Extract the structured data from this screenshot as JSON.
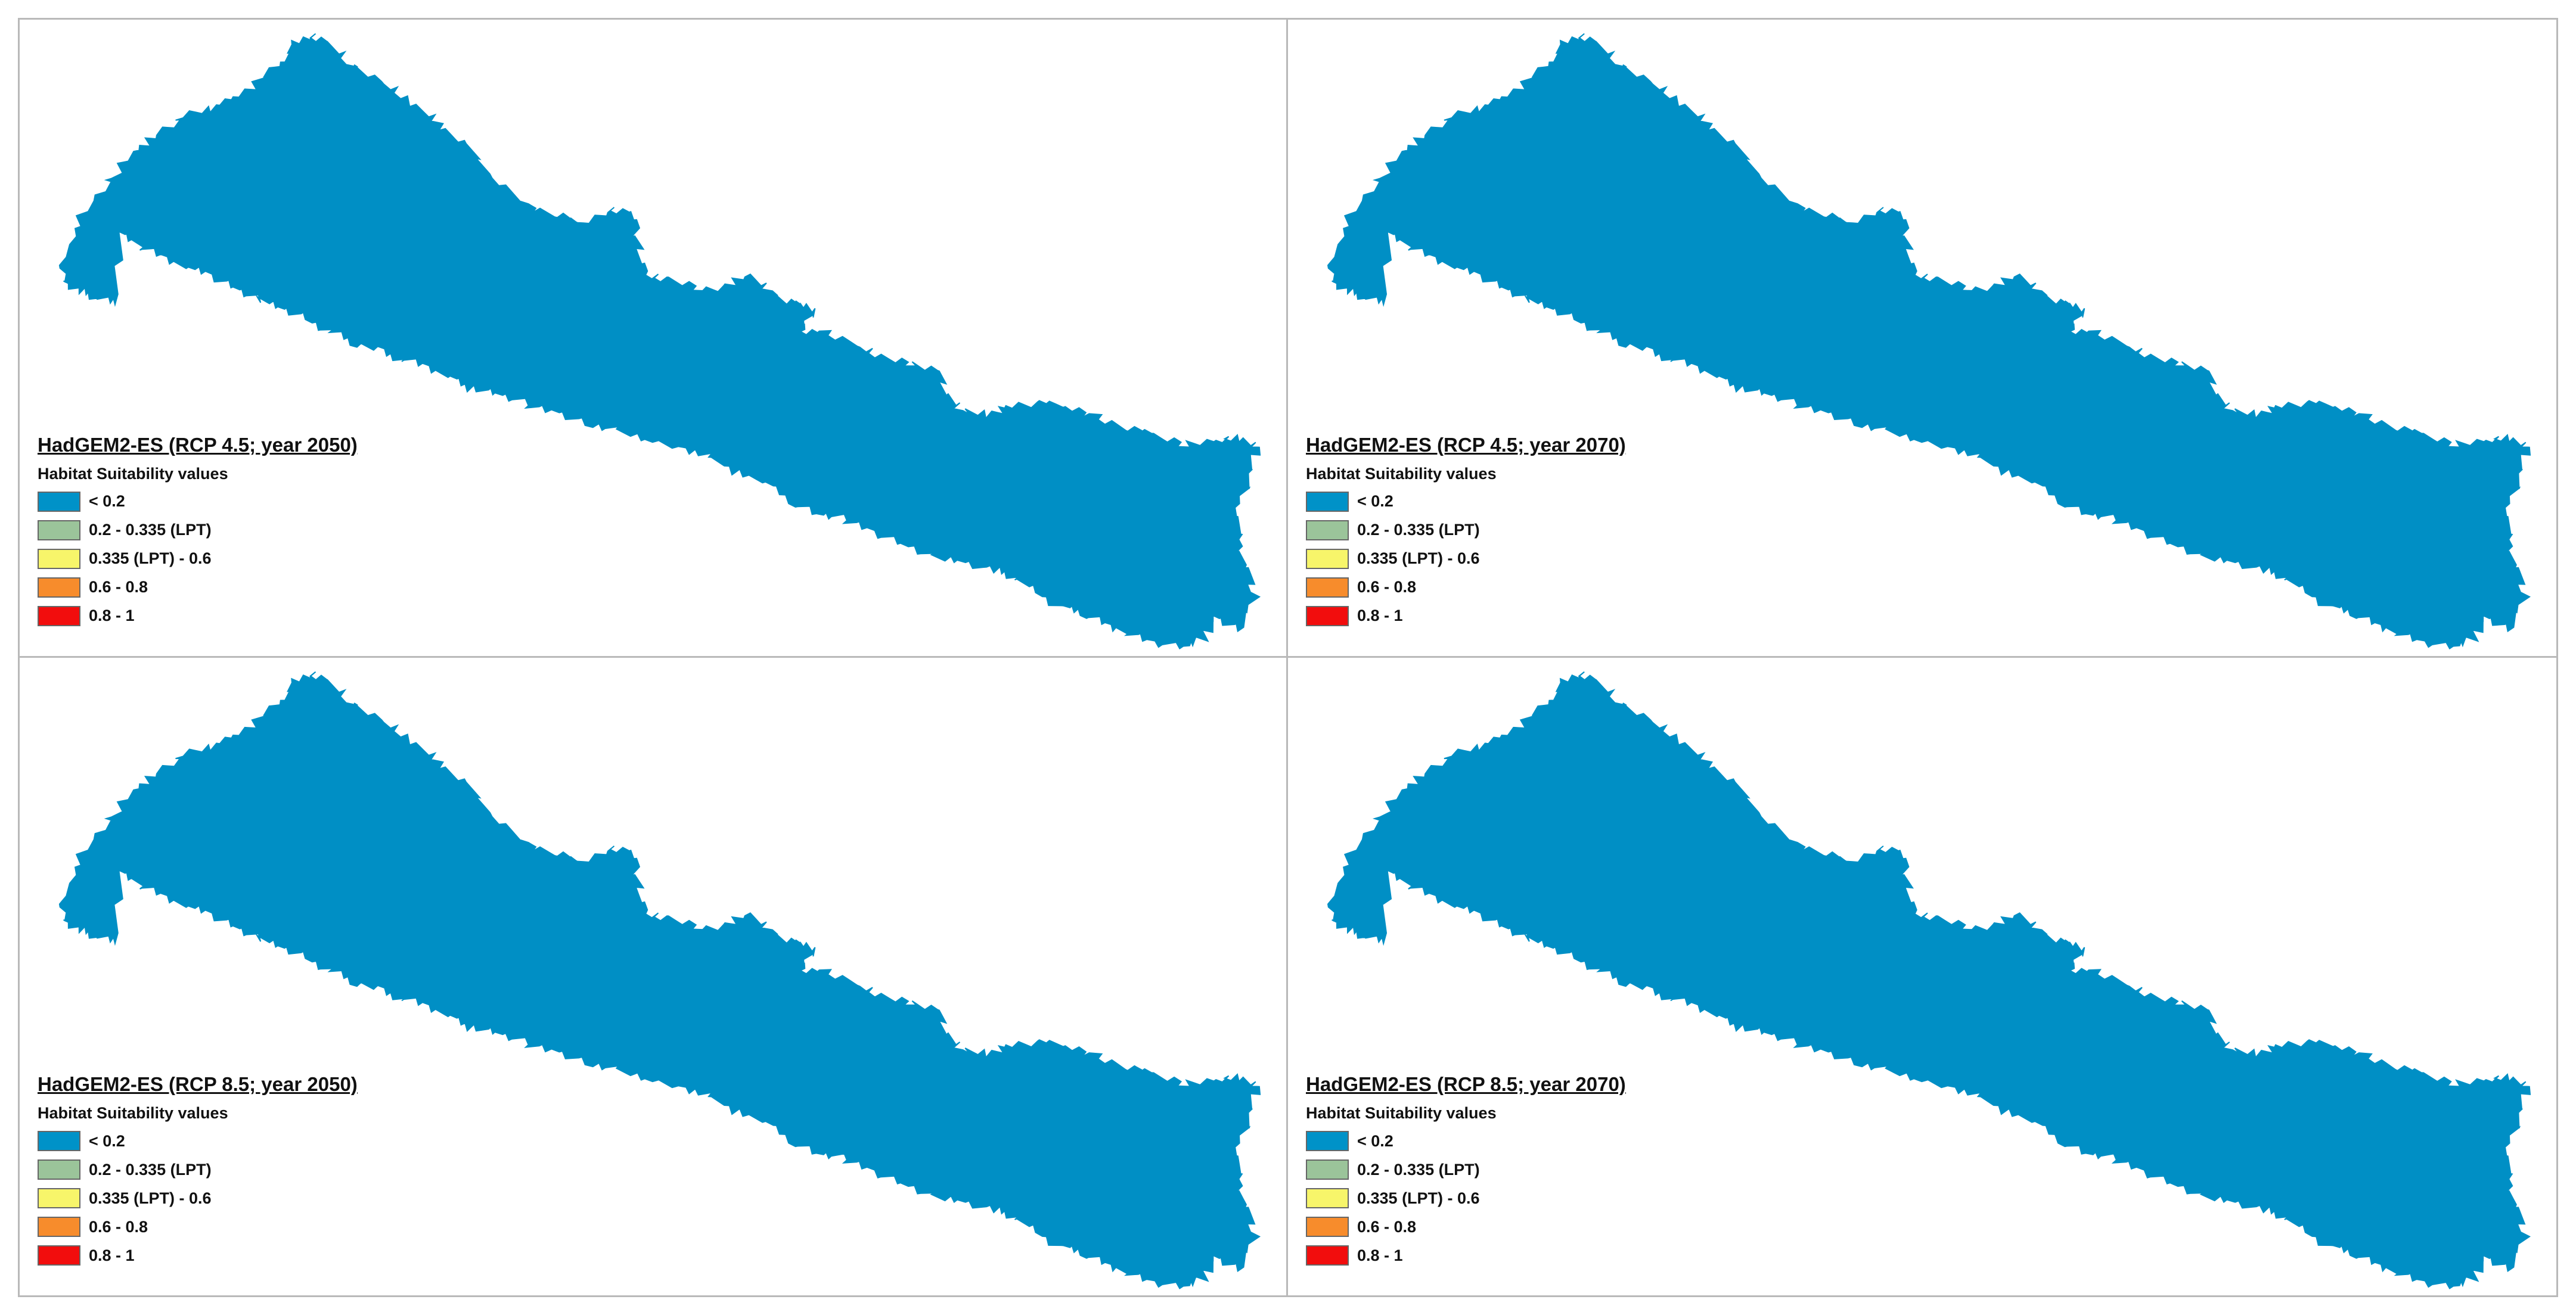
{
  "map": {
    "region_fill": "#008fc5",
    "legend_subtitle": "Habitat Suitability values",
    "legend_classes": [
      {
        "label": "< 0.2",
        "color": "#0092c8"
      },
      {
        "label": "0.2 - 0.335 (LPT)",
        "color": "#9bc49a"
      },
      {
        "label": "0.335 (LPT) - 0.6",
        "color": "#f7f56a"
      },
      {
        "label": "0.6 - 0.8",
        "color": "#f78c2c"
      },
      {
        "label": "0.8 - 1",
        "color": "#f20d0d"
      }
    ],
    "panels": [
      {
        "title": "HadGEM2-ES (RCP 4.5; year 2050)"
      },
      {
        "title": "HadGEM2-ES (RCP 4.5; year 2070)"
      },
      {
        "title": "HadGEM2-ES (RCP 8.5; year 2050)"
      },
      {
        "title": "HadGEM2-ES (RCP 8.5; year 2070)"
      }
    ]
  }
}
